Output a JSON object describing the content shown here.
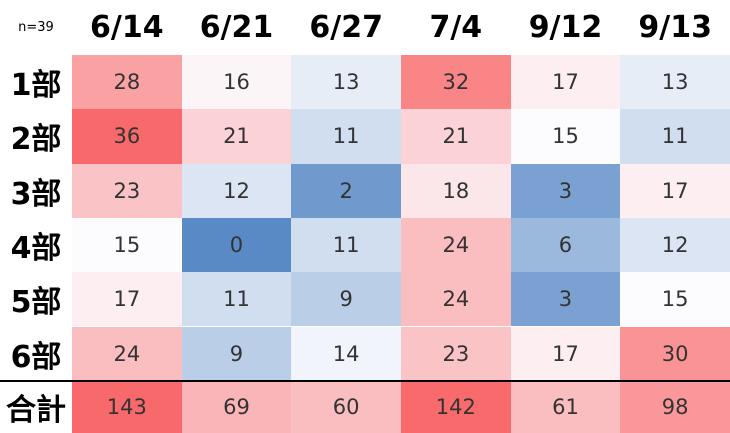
{
  "corner": "n=39",
  "columns": [
    "6/14",
    "6/21",
    "6/27",
    "7/4",
    "9/12",
    "9/13"
  ],
  "rows": [
    {
      "label": "1部",
      "values": [
        28,
        16,
        13,
        32,
        17,
        13
      ]
    },
    {
      "label": "2部",
      "values": [
        36,
        21,
        11,
        21,
        15,
        11
      ]
    },
    {
      "label": "3部",
      "values": [
        23,
        12,
        2,
        18,
        3,
        17
      ]
    },
    {
      "label": "4部",
      "values": [
        15,
        0,
        11,
        24,
        6,
        12
      ]
    },
    {
      "label": "5部",
      "values": [
        17,
        11,
        9,
        24,
        3,
        15
      ]
    },
    {
      "label": "6部",
      "values": [
        24,
        9,
        14,
        23,
        17,
        30
      ]
    }
  ],
  "total": {
    "label": "合計",
    "values": [
      143,
      69,
      60,
      142,
      61,
      98
    ]
  }
}
